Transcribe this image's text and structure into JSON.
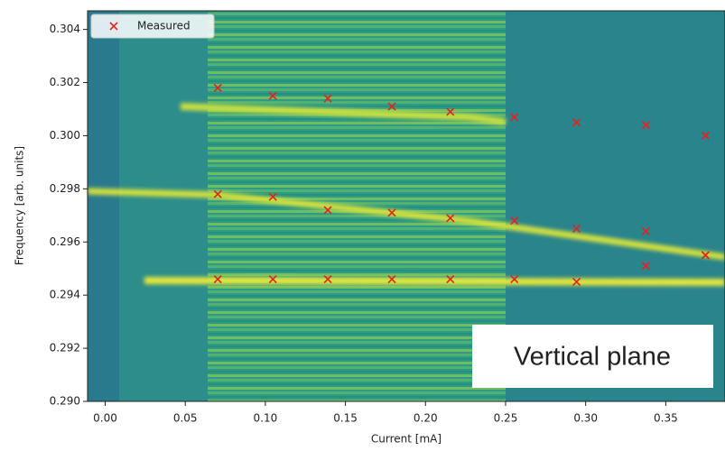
{
  "chart_data": {
    "type": "scatter",
    "xlabel": "Current [mA]",
    "ylabel": "Frequency [arb. units]",
    "annotation": "Vertical plane",
    "legend": "upper left",
    "series": [
      {
        "name": "Measured",
        "color": "#e8211c",
        "marker": "x",
        "x": [
          0.0703,
          0.1047,
          0.139,
          0.179,
          0.2155,
          0.2555,
          0.2943,
          0.3376,
          0.3748,
          0.0703,
          0.1047,
          0.139,
          0.179,
          0.2155,
          0.2555,
          0.2943,
          0.3376,
          0.3748,
          0.0703,
          0.1047,
          0.139,
          0.179,
          0.2155,
          0.2555,
          0.2943,
          0.3376,
          0.3748
        ],
        "y": [
          0.3018,
          0.3015,
          0.3014,
          0.3011,
          0.3009,
          0.3007,
          0.3005,
          0.3004,
          0.3,
          0.2978,
          0.2977,
          0.2972,
          0.2971,
          0.2969,
          0.2968,
          0.2965,
          0.2964,
          0.2955,
          0.2946,
          0.2946,
          0.2946,
          0.2946,
          0.2946,
          0.2946,
          0.2945,
          0.2951,
          0.2955
        ]
      }
    ],
    "xlim": [
      -0.011,
      0.387
    ],
    "ylim": [
      0.29,
      0.3047
    ],
    "xticks": [
      {
        "value": 0,
        "label": "0.00"
      },
      0.05,
      {
        "value": 0.1,
        "label": "0.10"
      },
      0.15,
      {
        "value": 0.2,
        "label": "0.20"
      },
      0.25,
      {
        "value": 0.3,
        "label": "0.30"
      },
      0.35
    ],
    "yticks": [
      {
        "value": 0.29,
        "label": "0.290"
      },
      0.292,
      0.294,
      0.296,
      0.298,
      {
        "value": 0.3,
        "label": "0.300"
      },
      0.302,
      0.304
    ]
  }
}
